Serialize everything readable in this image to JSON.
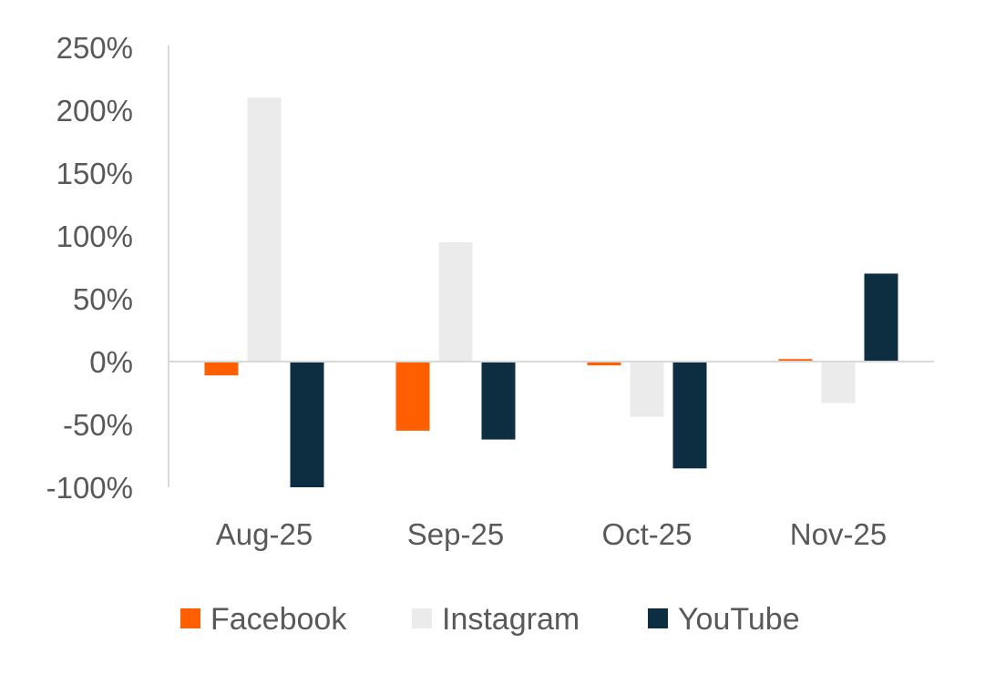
{
  "chart_data": {
    "type": "bar",
    "categories": [
      "Aug-25",
      "Sep-25",
      "Oct-25",
      "Nov-25"
    ],
    "series": [
      {
        "name": "Facebook",
        "values": [
          -11,
          -55,
          -3,
          2
        ],
        "color": "#FF5F00"
      },
      {
        "name": "Instagram",
        "values": [
          210,
          95,
          -44,
          -33
        ],
        "color": "#EBEBEB"
      },
      {
        "name": "YouTube",
        "values": [
          -100,
          -62,
          -85,
          70
        ],
        "color": "#0D2D40"
      }
    ],
    "ylim": [
      -100,
      250
    ],
    "yticks": [
      250,
      200,
      150,
      100,
      50,
      0,
      -50,
      -100
    ],
    "ytick_labels": [
      "250%",
      "200%",
      "150%",
      "100%",
      "50%",
      "0%",
      "-50%",
      "-100%"
    ],
    "title": "",
    "xlabel": "",
    "ylabel": "",
    "grid": false,
    "legend_position": "bottom"
  }
}
